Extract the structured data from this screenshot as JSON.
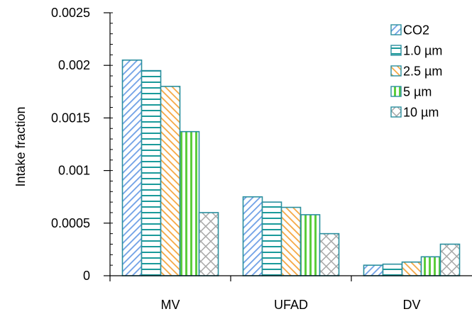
{
  "chart_data": {
    "type": "bar",
    "title": "",
    "xlabel": "",
    "ylabel": "Intake fraction",
    "ylim": [
      0,
      0.0025
    ],
    "yticks": [
      "0",
      "0.0005",
      "0.001",
      "0.0015",
      "0.002",
      "0.0025"
    ],
    "yticks_values": [
      0,
      0.0005,
      0.001,
      0.0015,
      0.002,
      0.0025
    ],
    "categories": [
      "MV",
      "UFAD",
      "DV"
    ],
    "grid": false,
    "legend_position": "top-right",
    "series": [
      {
        "name": "CO2",
        "values": [
          0.00205,
          0.00075,
          0.0001
        ],
        "pattern": "diag-down",
        "color": "#6fa0e6"
      },
      {
        "name": "1.0 µm",
        "values": [
          0.00195,
          0.0007,
          0.00011
        ],
        "pattern": "horizontal",
        "color": "#1a9a9a"
      },
      {
        "name": "2.5 µm",
        "values": [
          0.0018,
          0.00065,
          0.00013
        ],
        "pattern": "diag-up",
        "color": "#f5a742"
      },
      {
        "name": "5 µm",
        "values": [
          0.00137,
          0.00058,
          0.00018
        ],
        "pattern": "vertical",
        "color": "#5ccd3c"
      },
      {
        "name": "10 µm",
        "values": [
          0.0006,
          0.0004,
          0.0003
        ],
        "pattern": "crosshatch",
        "color": "#a8a8a8"
      }
    ],
    "bar_outline_color": "#2a8f9e"
  }
}
